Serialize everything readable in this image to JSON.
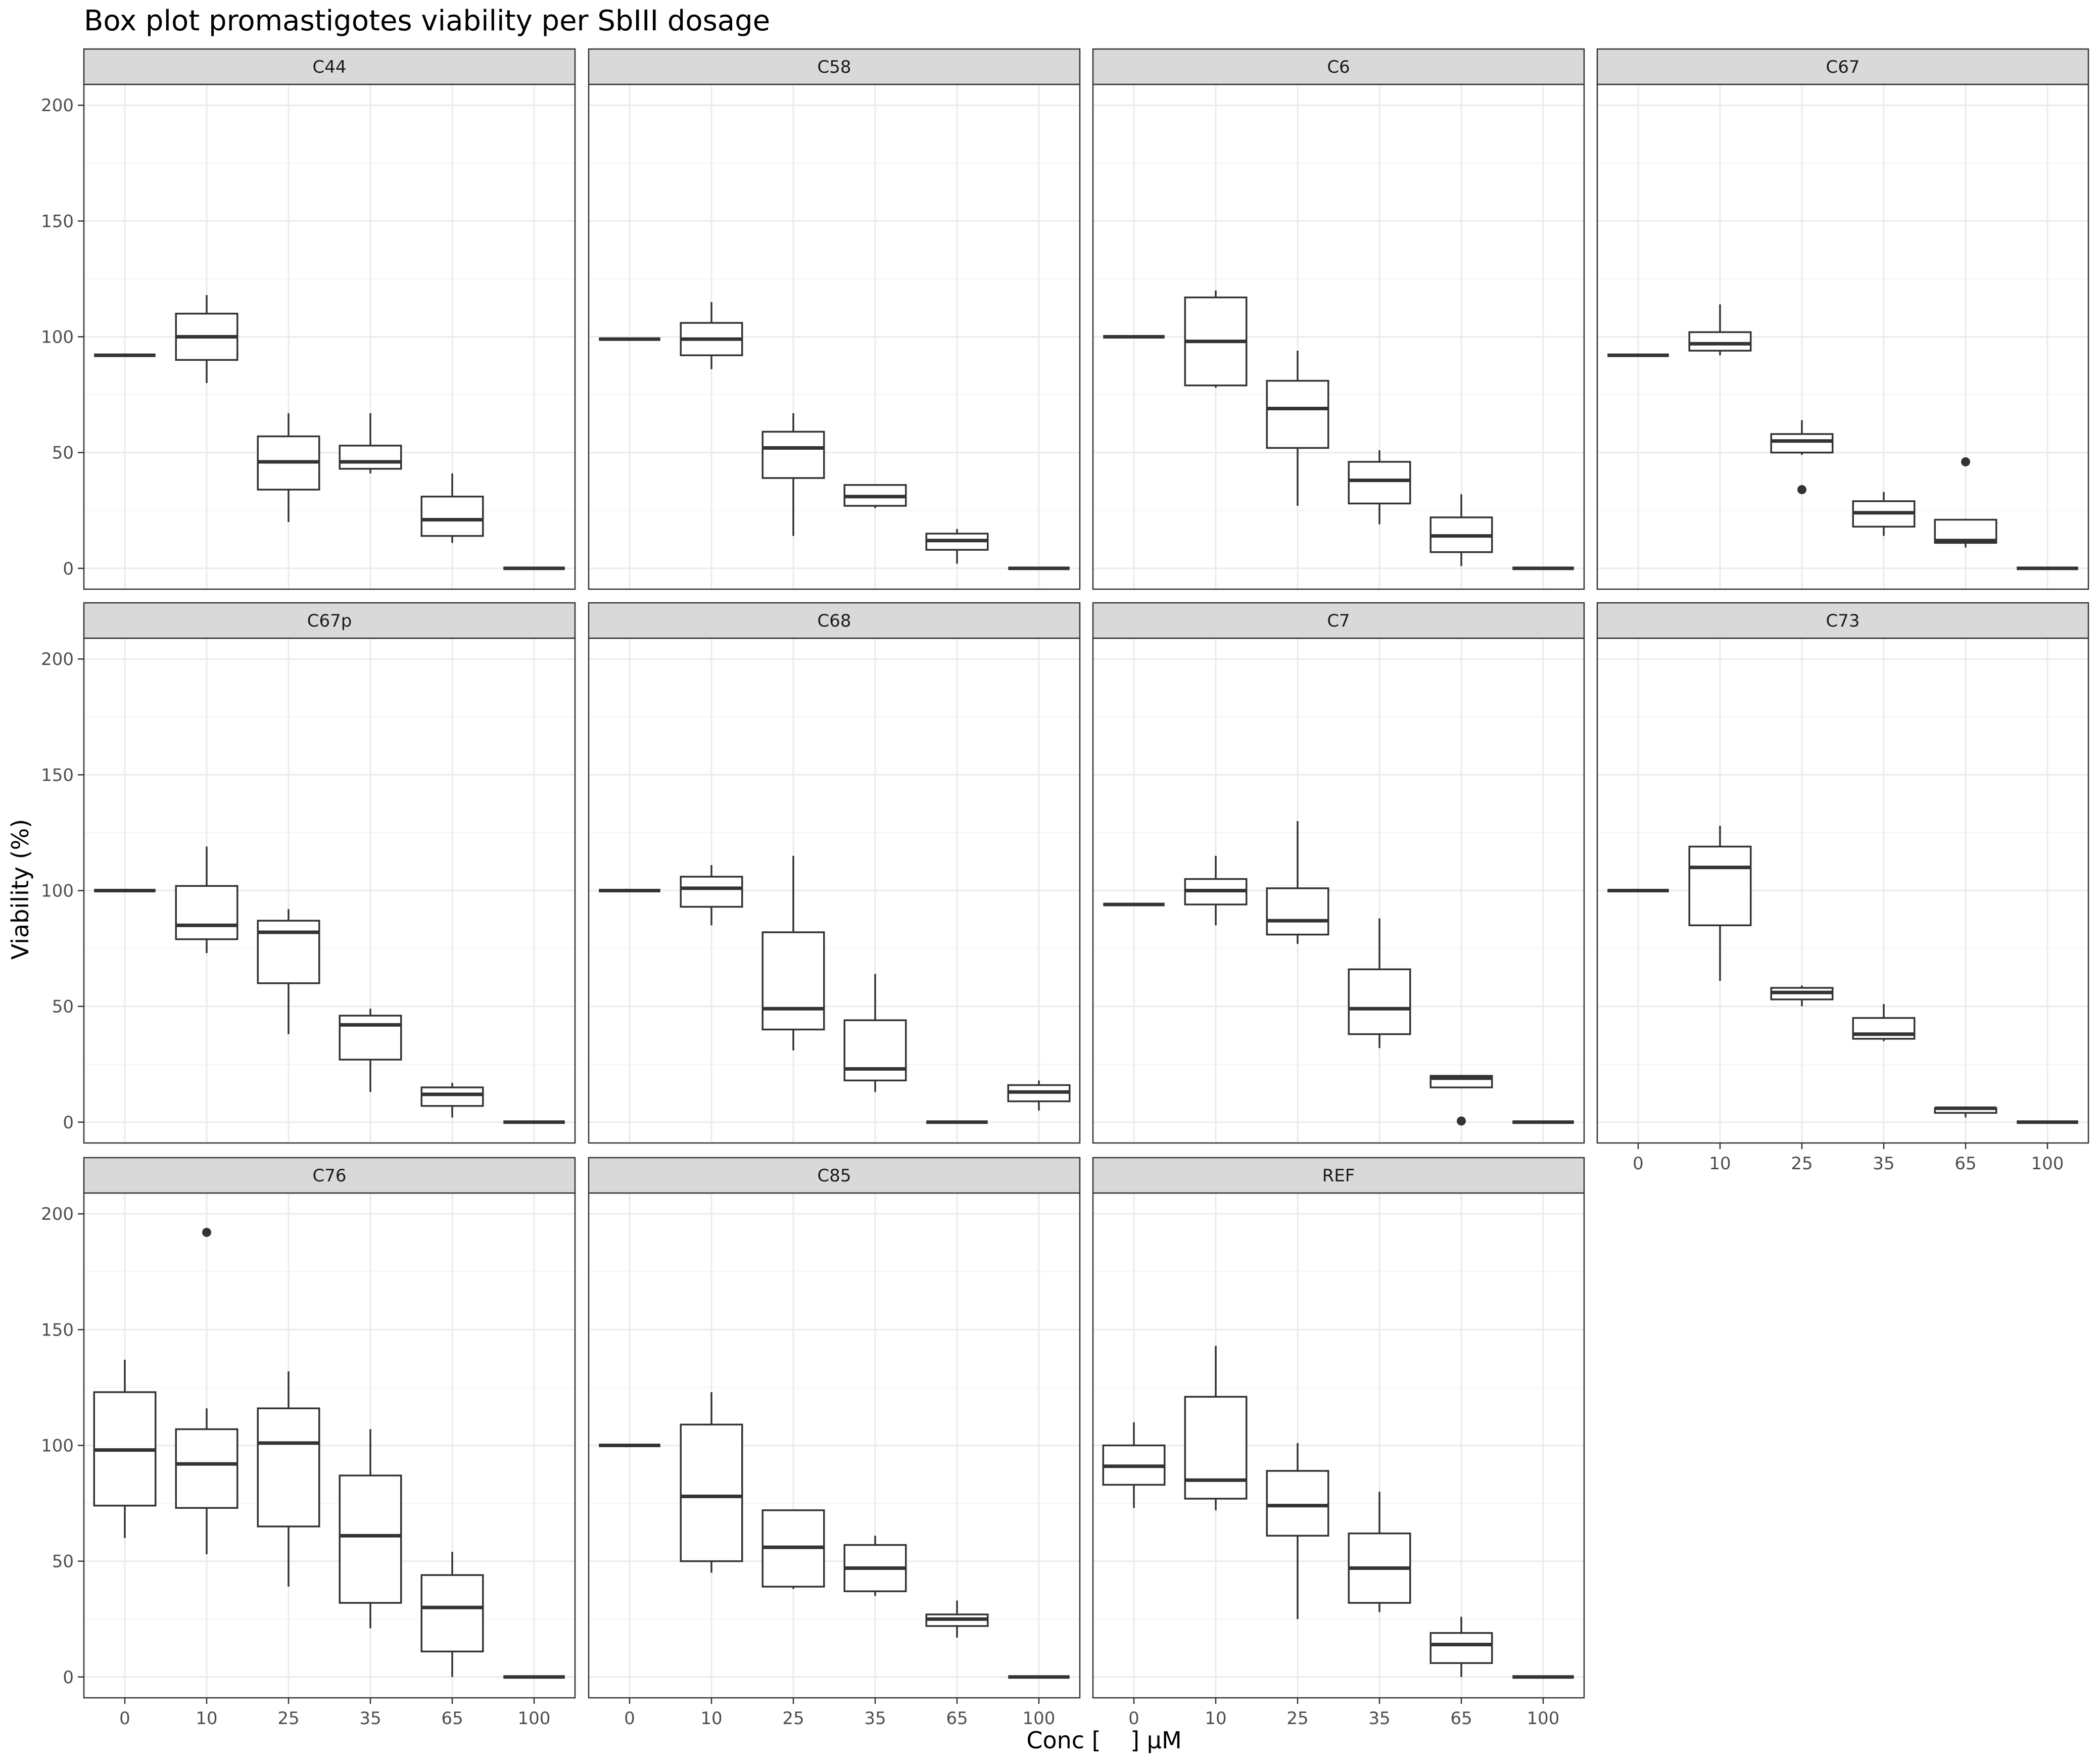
{
  "chart_data": {
    "type": "box",
    "title": "Box plot promastigotes viability per SbIII dosage",
    "xlabel": "Conc [    ] µM",
    "ylabel": "Viability (%)",
    "categories": [
      "0",
      "10",
      "25",
      "35",
      "65",
      "100"
    ],
    "ylim": [
      -9,
      209
    ],
    "y_ticks": [
      0,
      50,
      100,
      150,
      200
    ],
    "grid": true,
    "colors": {
      "box_line": "#333333",
      "strip_fill": "#d9d9d9",
      "grid_major": "#ebebeb",
      "grid_minor": "#f5f5f5",
      "panel_border": "#333333"
    },
    "panels": [
      {
        "name": "C44",
        "boxes": [
          {
            "x": "0",
            "q1": 92,
            "med": 92,
            "q3": 92,
            "lo": 92,
            "hi": 92,
            "out": []
          },
          {
            "x": "10",
            "q1": 90,
            "med": 100,
            "q3": 110,
            "lo": 80,
            "hi": 118,
            "out": []
          },
          {
            "x": "25",
            "q1": 34,
            "med": 46,
            "q3": 57,
            "lo": 20,
            "hi": 67,
            "out": []
          },
          {
            "x": "35",
            "q1": 43,
            "med": 46,
            "q3": 53,
            "lo": 41,
            "hi": 67,
            "out": []
          },
          {
            "x": "65",
            "q1": 14,
            "med": 21,
            "q3": 31,
            "lo": 11,
            "hi": 41,
            "out": []
          },
          {
            "x": "100",
            "q1": 0,
            "med": 0,
            "q3": 0,
            "lo": 0,
            "hi": 0,
            "out": []
          }
        ]
      },
      {
        "name": "C58",
        "boxes": [
          {
            "x": "0",
            "q1": 99,
            "med": 99,
            "q3": 99,
            "lo": 99,
            "hi": 99,
            "out": []
          },
          {
            "x": "10",
            "q1": 92,
            "med": 99,
            "q3": 106,
            "lo": 86,
            "hi": 115,
            "out": []
          },
          {
            "x": "25",
            "q1": 39,
            "med": 52,
            "q3": 59,
            "lo": 14,
            "hi": 67,
            "out": []
          },
          {
            "x": "35",
            "q1": 27,
            "med": 31,
            "q3": 36,
            "lo": 26,
            "hi": 36,
            "out": []
          },
          {
            "x": "65",
            "q1": 8,
            "med": 12,
            "q3": 15,
            "lo": 2,
            "hi": 17,
            "out": []
          },
          {
            "x": "100",
            "q1": 0,
            "med": 0,
            "q3": 0,
            "lo": 0,
            "hi": 0,
            "out": []
          }
        ]
      },
      {
        "name": "C6",
        "boxes": [
          {
            "x": "0",
            "q1": 100,
            "med": 100,
            "q3": 100,
            "lo": 100,
            "hi": 100,
            "out": []
          },
          {
            "x": "10",
            "q1": 79,
            "med": 98,
            "q3": 117,
            "lo": 78,
            "hi": 120,
            "out": []
          },
          {
            "x": "25",
            "q1": 52,
            "med": 69,
            "q3": 81,
            "lo": 27,
            "hi": 94,
            "out": []
          },
          {
            "x": "35",
            "q1": 28,
            "med": 38,
            "q3": 46,
            "lo": 19,
            "hi": 51,
            "out": []
          },
          {
            "x": "65",
            "q1": 7,
            "med": 14,
            "q3": 22,
            "lo": 1,
            "hi": 32,
            "out": []
          },
          {
            "x": "100",
            "q1": 0,
            "med": 0,
            "q3": 0,
            "lo": 0,
            "hi": 0,
            "out": []
          }
        ]
      },
      {
        "name": "C67",
        "boxes": [
          {
            "x": "0",
            "q1": 92,
            "med": 92,
            "q3": 92,
            "lo": 92,
            "hi": 92,
            "out": []
          },
          {
            "x": "10",
            "q1": 94,
            "med": 97,
            "q3": 102,
            "lo": 92,
            "hi": 114,
            "out": []
          },
          {
            "x": "25",
            "q1": 50,
            "med": 55,
            "q3": 58,
            "lo": 49,
            "hi": 64,
            "out": [
              34
            ]
          },
          {
            "x": "35",
            "q1": 18,
            "med": 24,
            "q3": 29,
            "lo": 14,
            "hi": 33,
            "out": []
          },
          {
            "x": "65",
            "q1": 11,
            "med": 12,
            "q3": 21,
            "lo": 9,
            "hi": 21,
            "out": [
              46
            ]
          },
          {
            "x": "100",
            "q1": 0,
            "med": 0,
            "q3": 0,
            "lo": 0,
            "hi": 0,
            "out": []
          }
        ]
      },
      {
        "name": "C67p",
        "boxes": [
          {
            "x": "0",
            "q1": 100,
            "med": 100,
            "q3": 100,
            "lo": 100,
            "hi": 100,
            "out": []
          },
          {
            "x": "10",
            "q1": 79,
            "med": 85,
            "q3": 102,
            "lo": 73,
            "hi": 119,
            "out": []
          },
          {
            "x": "25",
            "q1": 60,
            "med": 82,
            "q3": 87,
            "lo": 38,
            "hi": 92,
            "out": []
          },
          {
            "x": "35",
            "q1": 27,
            "med": 42,
            "q3": 46,
            "lo": 13,
            "hi": 49,
            "out": []
          },
          {
            "x": "65",
            "q1": 7,
            "med": 12,
            "q3": 15,
            "lo": 2,
            "hi": 17,
            "out": []
          },
          {
            "x": "100",
            "q1": 0,
            "med": 0,
            "q3": 0,
            "lo": 0,
            "hi": 0,
            "out": []
          }
        ]
      },
      {
        "name": "C68",
        "boxes": [
          {
            "x": "0",
            "q1": 100,
            "med": 100,
            "q3": 100,
            "lo": 100,
            "hi": 100,
            "out": []
          },
          {
            "x": "10",
            "q1": 93,
            "med": 101,
            "q3": 106,
            "lo": 85,
            "hi": 111,
            "out": []
          },
          {
            "x": "25",
            "q1": 40,
            "med": 49,
            "q3": 82,
            "lo": 31,
            "hi": 115,
            "out": []
          },
          {
            "x": "35",
            "q1": 18,
            "med": 23,
            "q3": 44,
            "lo": 13,
            "hi": 64,
            "out": []
          },
          {
            "x": "65",
            "q1": 0,
            "med": 0,
            "q3": 0,
            "lo": 0,
            "hi": 0,
            "out": []
          },
          {
            "x": "100",
            "q1": 9,
            "med": 13,
            "q3": 16,
            "lo": 5,
            "hi": 18,
            "out": []
          }
        ]
      },
      {
        "name": "C7",
        "boxes": [
          {
            "x": "0",
            "q1": 94,
            "med": 94,
            "q3": 94,
            "lo": 94,
            "hi": 94,
            "out": []
          },
          {
            "x": "10",
            "q1": 94,
            "med": 100,
            "q3": 105,
            "lo": 85,
            "hi": 115,
            "out": []
          },
          {
            "x": "25",
            "q1": 81,
            "med": 87,
            "q3": 101,
            "lo": 77,
            "hi": 130,
            "out": []
          },
          {
            "x": "35",
            "q1": 38,
            "med": 49,
            "q3": 66,
            "lo": 32,
            "hi": 88,
            "out": []
          },
          {
            "x": "65",
            "q1": 15,
            "med": 19,
            "q3": 20,
            "lo": 15,
            "hi": 20,
            "out": [
              0.5
            ]
          },
          {
            "x": "100",
            "q1": 0,
            "med": 0,
            "q3": 0,
            "lo": 0,
            "hi": 0,
            "out": []
          }
        ]
      },
      {
        "name": "C73",
        "boxes": [
          {
            "x": "0",
            "q1": 100,
            "med": 100,
            "q3": 100,
            "lo": 100,
            "hi": 100,
            "out": []
          },
          {
            "x": "10",
            "q1": 85,
            "med": 110,
            "q3": 119,
            "lo": 61,
            "hi": 128,
            "out": []
          },
          {
            "x": "25",
            "q1": 53,
            "med": 56,
            "q3": 58,
            "lo": 50,
            "hi": 59,
            "out": []
          },
          {
            "x": "35",
            "q1": 36,
            "med": 38,
            "q3": 45,
            "lo": 35,
            "hi": 51,
            "out": []
          },
          {
            "x": "65",
            "q1": 4,
            "med": 6,
            "q3": 6,
            "lo": 2,
            "hi": 6,
            "out": []
          },
          {
            "x": "100",
            "q1": 0,
            "med": 0,
            "q3": 0,
            "lo": 0,
            "hi": 0,
            "out": []
          }
        ]
      },
      {
        "name": "C76",
        "boxes": [
          {
            "x": "0",
            "q1": 74,
            "med": 98,
            "q3": 123,
            "lo": 60,
            "hi": 137,
            "out": []
          },
          {
            "x": "10",
            "q1": 73,
            "med": 92,
            "q3": 107,
            "lo": 53,
            "hi": 116,
            "out": [
              192
            ]
          },
          {
            "x": "25",
            "q1": 65,
            "med": 101,
            "q3": 116,
            "lo": 39,
            "hi": 132,
            "out": []
          },
          {
            "x": "35",
            "q1": 32,
            "med": 61,
            "q3": 87,
            "lo": 21,
            "hi": 107,
            "out": []
          },
          {
            "x": "65",
            "q1": 11,
            "med": 30,
            "q3": 44,
            "lo": 0,
            "hi": 54,
            "out": []
          },
          {
            "x": "100",
            "q1": 0,
            "med": 0,
            "q3": 0,
            "lo": 0,
            "hi": 0,
            "out": []
          }
        ]
      },
      {
        "name": "C85",
        "boxes": [
          {
            "x": "0",
            "q1": 100,
            "med": 100,
            "q3": 100,
            "lo": 100,
            "hi": 100,
            "out": []
          },
          {
            "x": "10",
            "q1": 50,
            "med": 78,
            "q3": 109,
            "lo": 45,
            "hi": 123,
            "out": []
          },
          {
            "x": "25",
            "q1": 39,
            "med": 56,
            "q3": 72,
            "lo": 38,
            "hi": 72,
            "out": []
          },
          {
            "x": "35",
            "q1": 37,
            "med": 47,
            "q3": 57,
            "lo": 35,
            "hi": 61,
            "out": []
          },
          {
            "x": "65",
            "q1": 22,
            "med": 25,
            "q3": 27,
            "lo": 17,
            "hi": 33,
            "out": []
          },
          {
            "x": "100",
            "q1": 0,
            "med": 0,
            "q3": 0,
            "lo": 0,
            "hi": 0,
            "out": []
          }
        ]
      },
      {
        "name": "REF",
        "boxes": [
          {
            "x": "0",
            "q1": 83,
            "med": 91,
            "q3": 100,
            "lo": 73,
            "hi": 110,
            "out": []
          },
          {
            "x": "10",
            "q1": 77,
            "med": 85,
            "q3": 121,
            "lo": 72,
            "hi": 143,
            "out": []
          },
          {
            "x": "25",
            "q1": 61,
            "med": 74,
            "q3": 89,
            "lo": 25,
            "hi": 101,
            "out": []
          },
          {
            "x": "35",
            "q1": 32,
            "med": 47,
            "q3": 62,
            "lo": 28,
            "hi": 80,
            "out": []
          },
          {
            "x": "65",
            "q1": 6,
            "med": 14,
            "q3": 19,
            "lo": 0,
            "hi": 26,
            "out": []
          },
          {
            "x": "100",
            "q1": 0,
            "med": 0,
            "q3": 0,
            "lo": 0,
            "hi": 0,
            "out": []
          }
        ]
      }
    ]
  }
}
